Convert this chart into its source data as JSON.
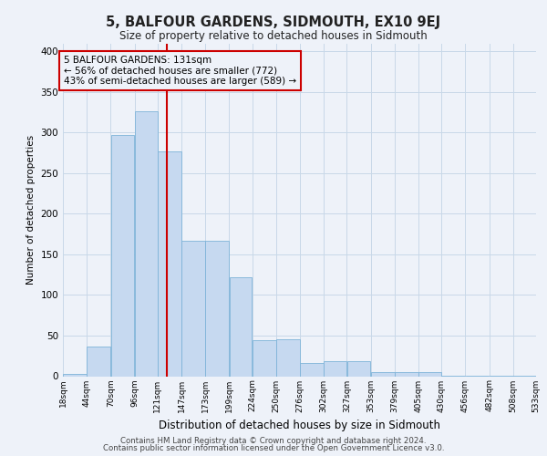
{
  "title": "5, BALFOUR GARDENS, SIDMOUTH, EX10 9EJ",
  "subtitle": "Size of property relative to detached houses in Sidmouth",
  "xlabel": "Distribution of detached houses by size in Sidmouth",
  "ylabel": "Number of detached properties",
  "footnote1": "Contains HM Land Registry data © Crown copyright and database right 2024.",
  "footnote2": "Contains public sector information licensed under the Open Government Licence v3.0.",
  "annotation_line1": "5 BALFOUR GARDENS: 131sqm",
  "annotation_line2": "← 56% of detached houses are smaller (772)",
  "annotation_line3": "43% of semi-detached houses are larger (589) →",
  "property_size": 131,
  "bar_left_edges": [
    18,
    44,
    70,
    96,
    121,
    147,
    173,
    199,
    224,
    250,
    276,
    302,
    327,
    353,
    379,
    405,
    430,
    456,
    482,
    508
  ],
  "bar_widths": [
    26,
    26,
    26,
    25,
    26,
    26,
    26,
    25,
    26,
    26,
    26,
    25,
    26,
    26,
    26,
    25,
    26,
    26,
    26,
    25
  ],
  "bar_heights": [
    3,
    36,
    297,
    326,
    277,
    167,
    167,
    122,
    44,
    46,
    16,
    18,
    18,
    5,
    5,
    5,
    1,
    1,
    1,
    1
  ],
  "tick_labels": [
    "18sqm",
    "44sqm",
    "70sqm",
    "96sqm",
    "121sqm",
    "147sqm",
    "173sqm",
    "199sqm",
    "224sqm",
    "250sqm",
    "276sqm",
    "302sqm",
    "327sqm",
    "353sqm",
    "379sqm",
    "405sqm",
    "430sqm",
    "456sqm",
    "482sqm",
    "508sqm",
    "533sqm"
  ],
  "bar_color": "#c6d9f0",
  "bar_edge_color": "#7eb3d8",
  "grid_color": "#c8d8e8",
  "annotation_line_color": "#cc0000",
  "annotation_box_color": "#cc0000",
  "background_color": "#eef2f9",
  "ylim": [
    0,
    410
  ],
  "yticks": [
    0,
    50,
    100,
    150,
    200,
    250,
    300,
    350,
    400
  ]
}
